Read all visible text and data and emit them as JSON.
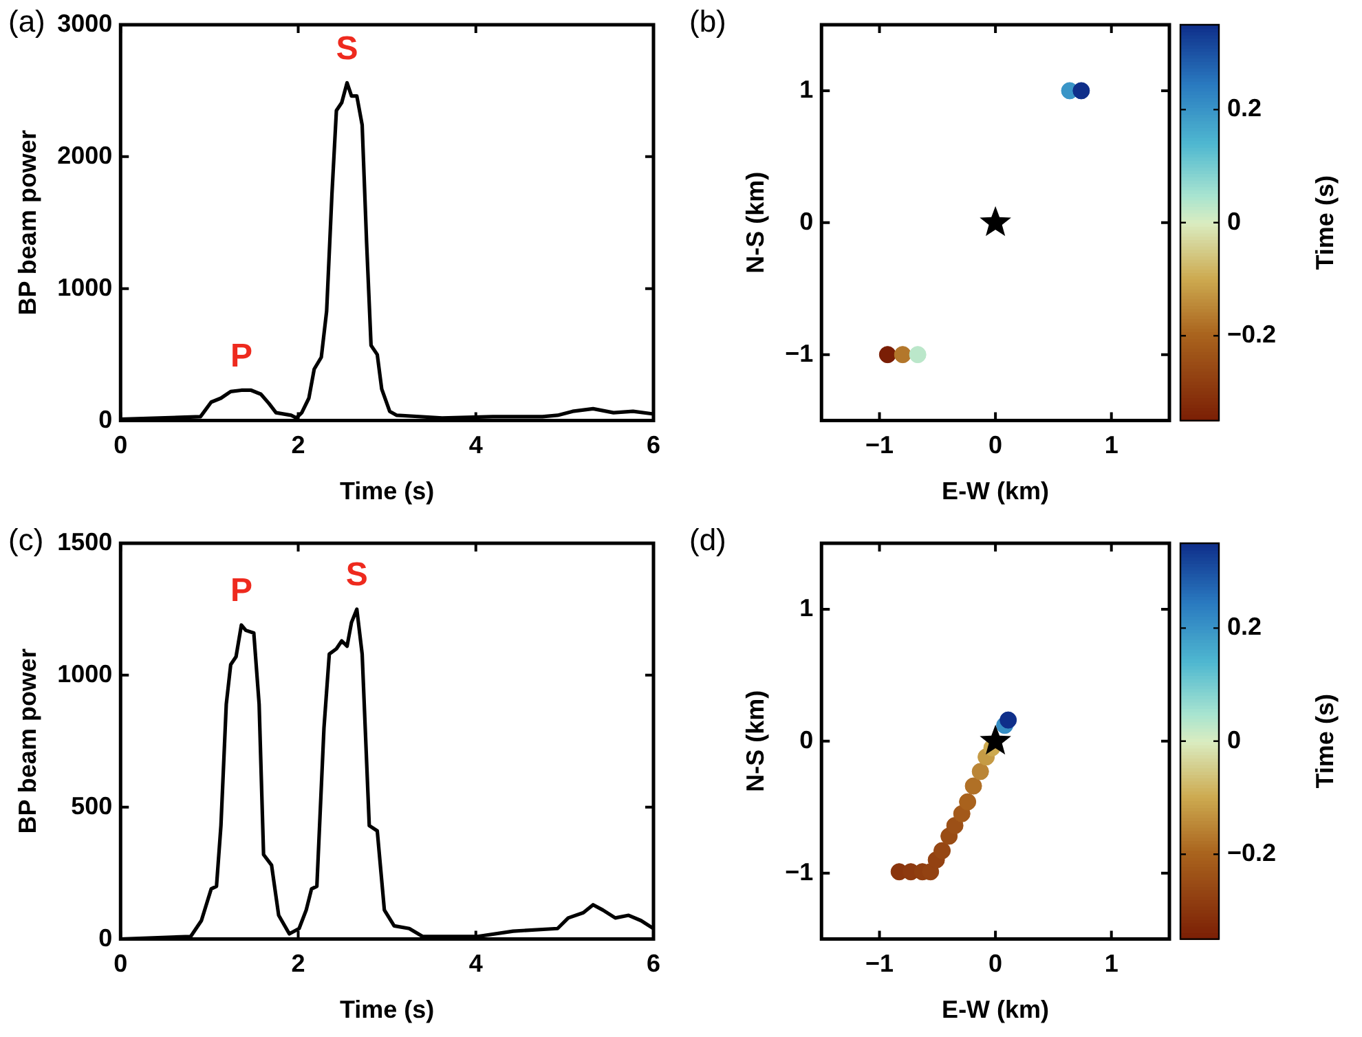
{
  "chart_data": [
    {
      "type": "line",
      "title": "(a)",
      "xlabel": "Time (s)",
      "ylabel": "BP beam power",
      "xlim": [
        0,
        6
      ],
      "xticks": [
        0,
        2,
        4,
        6
      ],
      "ylim": [
        0,
        3000
      ],
      "yticks": [
        0,
        1000,
        2000,
        3000
      ],
      "grid": false,
      "legend": false,
      "marker": "none",
      "line_style": "solid",
      "annotations": [
        {
          "text": "P",
          "x": 1.36,
          "y": 230
        },
        {
          "text": "S",
          "x": 2.55,
          "y": 2560
        }
      ],
      "series": [
        {
          "color": "#000000",
          "x": [
            0,
            0.9,
            1.02,
            1.13,
            1.24,
            1.36,
            1.47,
            1.58,
            1.67,
            1.75,
            1.92,
            1.98,
            2.04,
            2.12,
            2.18,
            2.26,
            2.32,
            2.38,
            2.43,
            2.49,
            2.55,
            2.6,
            2.66,
            2.72,
            2.77,
            2.82,
            2.89,
            2.94,
            3.03,
            3.11,
            3.62,
            4.19,
            4.75,
            4.92,
            5.09,
            5.32,
            5.55,
            5.77,
            6
          ],
          "values": [
            10,
            30,
            140,
            170,
            220,
            230,
            230,
            200,
            130,
            60,
            40,
            20,
            60,
            170,
            390,
            480,
            830,
            1720,
            2350,
            2410,
            2560,
            2460,
            2460,
            2240,
            1350,
            570,
            500,
            240,
            70,
            40,
            20,
            30,
            30,
            40,
            70,
            90,
            60,
            70,
            50
          ]
        }
      ]
    },
    {
      "type": "scatter",
      "title": "(b)",
      "xlabel": "E-W (km)",
      "ylabel": "N-S (km)",
      "clabel": "Time (s)",
      "xlim": [
        -1.5,
        1.5
      ],
      "xticks": [
        -1,
        0,
        1
      ],
      "ylim": [
        -1.5,
        1.5
      ],
      "yticks": [
        -1,
        0,
        1
      ],
      "clim": [
        -0.35,
        0.35
      ],
      "cticks": [
        -0.2,
        0,
        0.2
      ],
      "grid": false,
      "legend": false,
      "series": [
        {
          "marker": "circle",
          "x": [
            -0.93,
            -0.8,
            -0.67,
            0.64,
            0.74
          ],
          "values": [
            -1,
            -1,
            -1,
            1,
            1
          ],
          "cvalues": [
            -0.35,
            -0.17,
            0.03,
            0.2,
            0.35
          ],
          "colors": [
            "#7a1e05",
            "#b3772b",
            "#bbe7ca",
            "#3a95c7",
            "#0f2f8a"
          ]
        },
        {
          "marker": "star",
          "color": "#000000",
          "x": [
            0
          ],
          "values": [
            0
          ]
        }
      ]
    },
    {
      "type": "line",
      "title": "(c)",
      "xlabel": "Time (s)",
      "ylabel": "BP beam power",
      "xlim": [
        0,
        6
      ],
      "xticks": [
        0,
        2,
        4,
        6
      ],
      "ylim": [
        0,
        1500
      ],
      "yticks": [
        0,
        500,
        1000,
        1500
      ],
      "grid": false,
      "legend": false,
      "marker": "none",
      "line_style": "solid",
      "annotations": [
        {
          "text": "P",
          "x": 1.36,
          "y": 1190
        },
        {
          "text": "S",
          "x": 2.66,
          "y": 1250
        }
      ],
      "series": [
        {
          "color": "#000000",
          "x": [
            0,
            0.79,
            0.91,
            1.02,
            1.08,
            1.13,
            1.19,
            1.24,
            1.3,
            1.36,
            1.41,
            1.5,
            1.56,
            1.61,
            1.7,
            1.78,
            1.9,
            2.01,
            2.09,
            2.15,
            2.21,
            2.29,
            2.35,
            2.43,
            2.49,
            2.55,
            2.6,
            2.66,
            2.72,
            2.8,
            2.89,
            2.97,
            3.08,
            3.25,
            3.4,
            4.02,
            4.42,
            4.92,
            5.04,
            5.21,
            5.32,
            5.43,
            5.57,
            5.72,
            5.86,
            6
          ],
          "values": [
            0,
            10,
            70,
            190,
            200,
            430,
            890,
            1040,
            1070,
            1190,
            1170,
            1160,
            890,
            320,
            280,
            90,
            20,
            40,
            110,
            190,
            200,
            800,
            1080,
            1100,
            1130,
            1110,
            1200,
            1250,
            1080,
            430,
            410,
            110,
            50,
            40,
            10,
            10,
            30,
            40,
            80,
            100,
            130,
            110,
            80,
            90,
            70,
            40
          ]
        }
      ]
    },
    {
      "type": "scatter",
      "title": "(d)",
      "xlabel": "E-W (km)",
      "ylabel": "N-S (km)",
      "clabel": "Time (s)",
      "xlim": [
        -1.5,
        1.5
      ],
      "xticks": [
        -1,
        0,
        1
      ],
      "ylim": [
        -1.5,
        1.5
      ],
      "yticks": [
        -1,
        0,
        1
      ],
      "clim": [
        -0.35,
        0.35
      ],
      "cticks": [
        -0.2,
        0,
        0.2
      ],
      "grid": false,
      "legend": false,
      "series": [
        {
          "marker": "circle",
          "x": [
            -0.83,
            -0.73,
            -0.63,
            -0.56,
            -0.51,
            -0.46,
            -0.4,
            -0.35,
            -0.29,
            -0.24,
            -0.19,
            -0.13,
            -0.08,
            -0.03,
            0.08,
            0.11
          ],
          "values": [
            -0.99,
            -0.99,
            -0.99,
            -0.99,
            -0.9,
            -0.83,
            -0.72,
            -0.64,
            -0.55,
            -0.46,
            -0.34,
            -0.23,
            -0.12,
            -0.05,
            0.12,
            0.16
          ],
          "cvalues": [
            -0.3,
            -0.29,
            -0.28,
            -0.27,
            -0.27,
            -0.26,
            -0.25,
            -0.24,
            -0.22,
            -0.2,
            -0.18,
            -0.15,
            -0.12,
            -0.1,
            0.22,
            0.35
          ],
          "colors": [
            "#8a350d",
            "#8d390f",
            "#903e10",
            "#934212",
            "#934212",
            "#964714",
            "#994c15",
            "#9c5017",
            "#a3591a",
            "#a9621d",
            "#b07026",
            "#ba8536",
            "#c59b45",
            "#cca94f",
            "#368fc5",
            "#0f2f8a"
          ]
        },
        {
          "marker": "star",
          "color": "#000000",
          "x": [
            0
          ],
          "values": [
            0
          ]
        }
      ]
    }
  ]
}
